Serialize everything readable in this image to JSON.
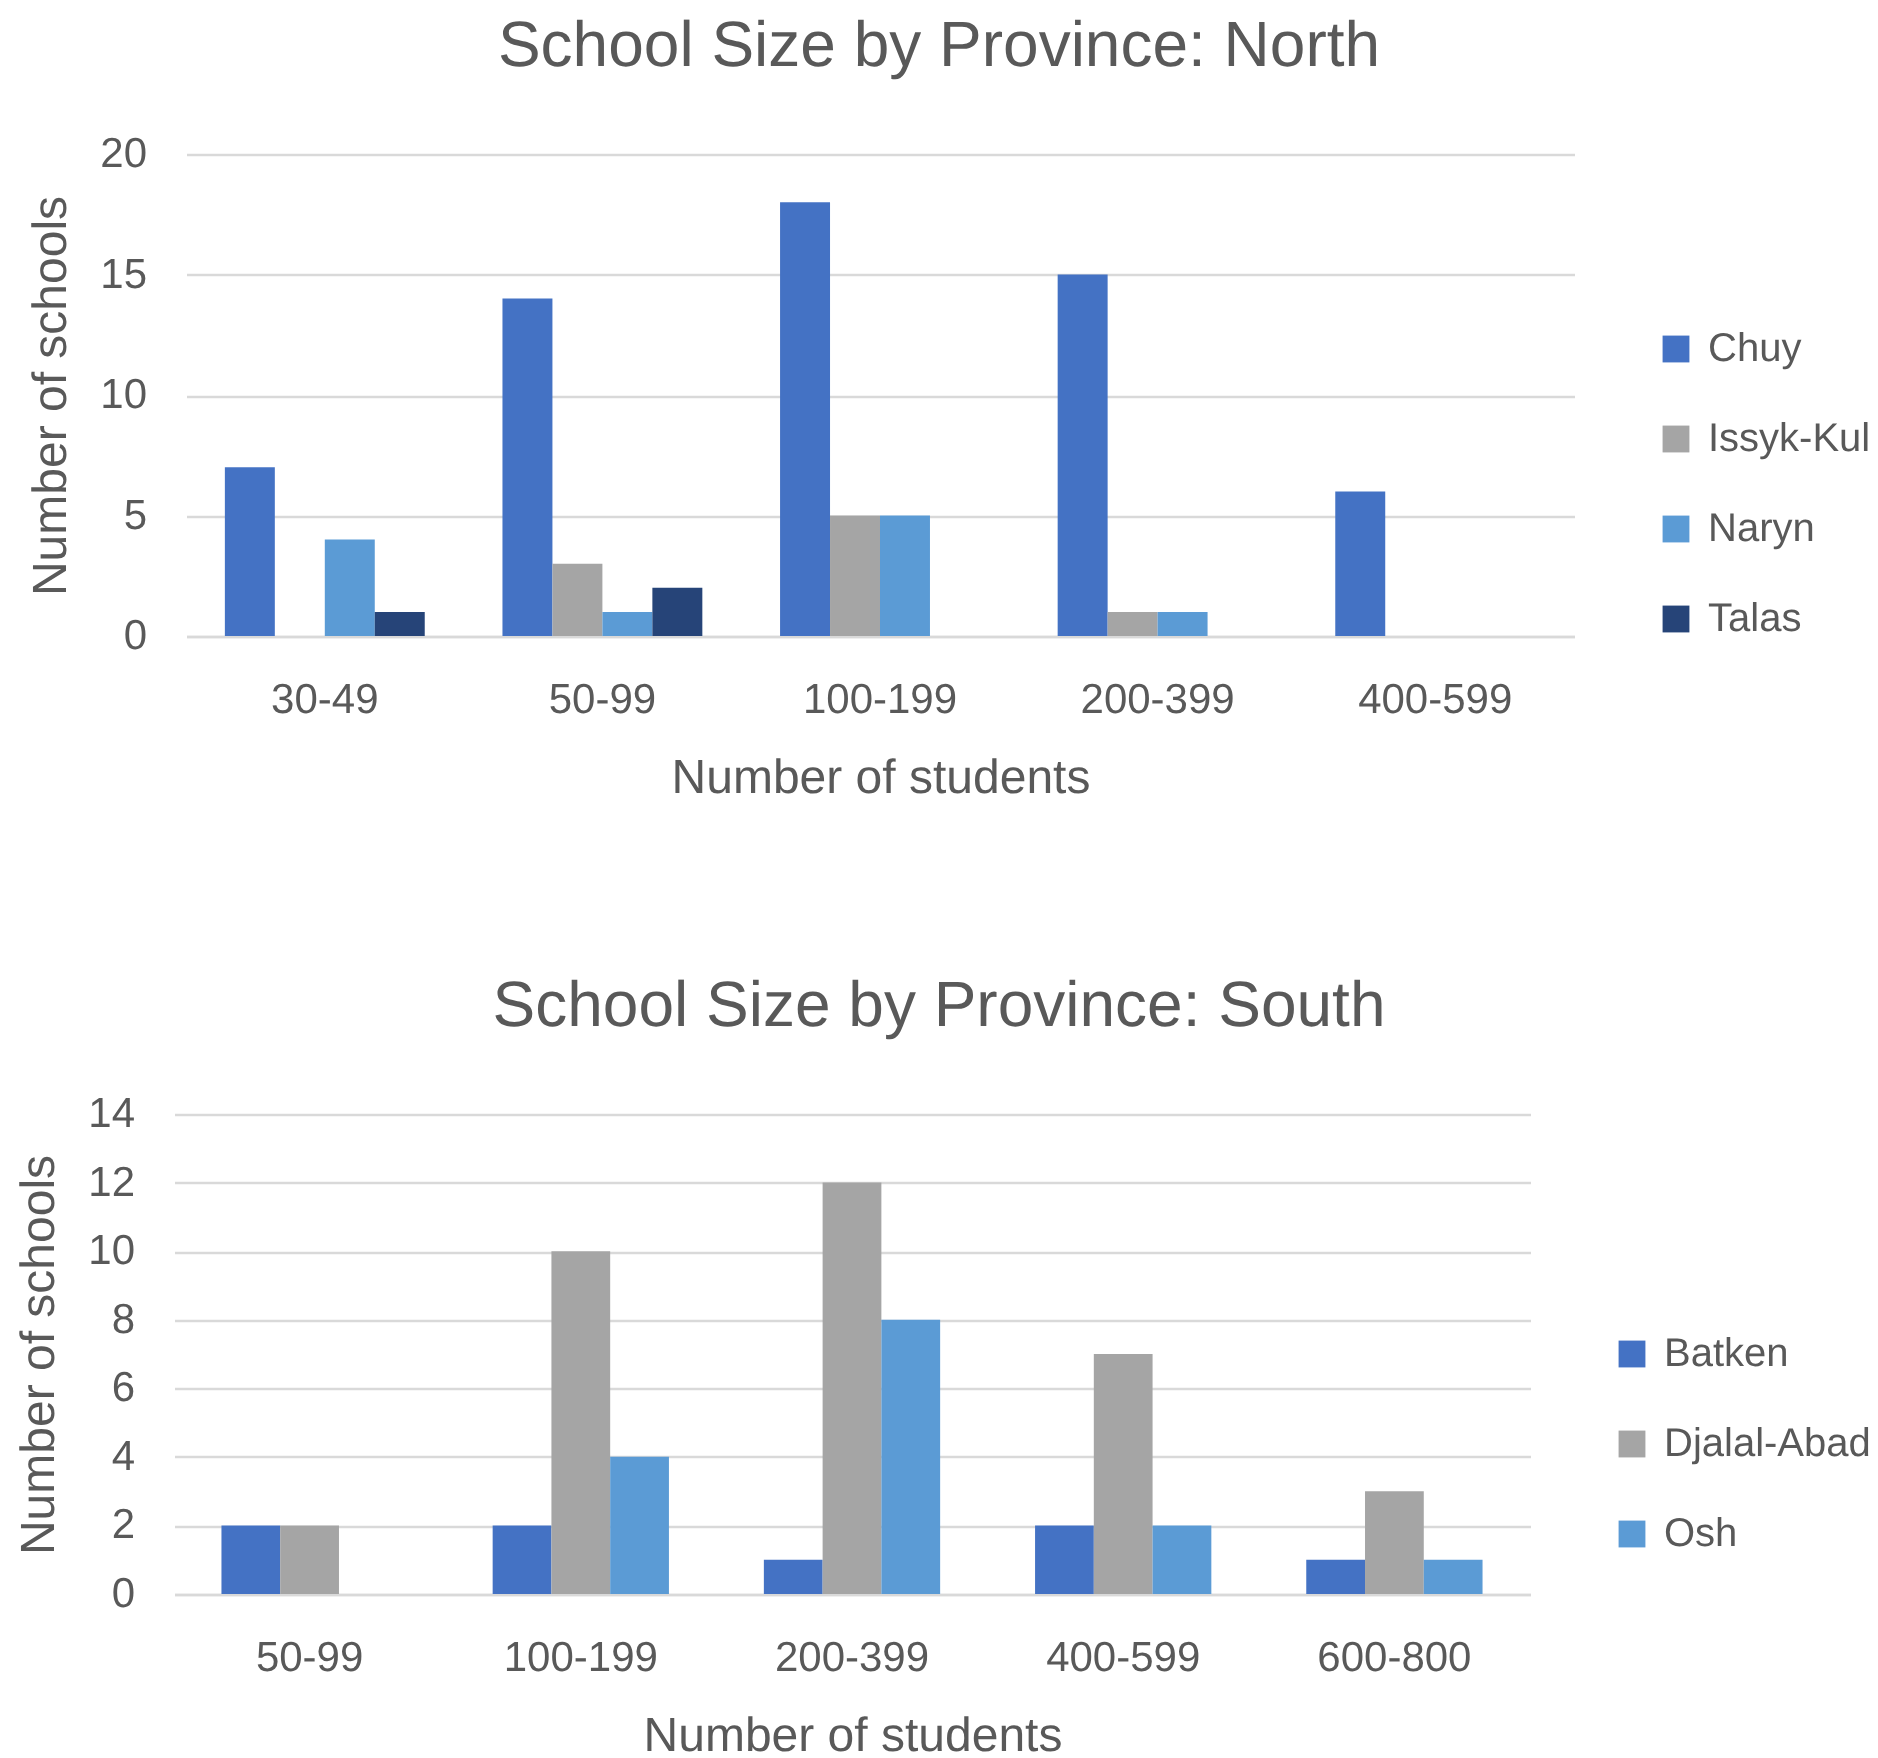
{
  "chart_data": [
    {
      "type": "bar",
      "title": "School Size by Province: North",
      "xlabel": "Number of students",
      "ylabel": "Number of schools",
      "categories": [
        "30-49",
        "50-99",
        "100-199",
        "200-399",
        "400-599"
      ],
      "series": [
        {
          "name": "Chuy",
          "color": "#4472c4",
          "values": [
            7,
            14,
            18,
            15,
            6
          ]
        },
        {
          "name": "Issyk-Kul",
          "color": "#a5a5a5",
          "values": [
            null,
            3,
            5,
            1,
            null
          ]
        },
        {
          "name": "Naryn",
          "color": "#5b9bd5",
          "values": [
            4,
            1,
            5,
            1,
            null
          ]
        },
        {
          "name": "Talas",
          "color": "#264478",
          "values": [
            1,
            2,
            null,
            null,
            null
          ]
        }
      ],
      "ylim": [
        0,
        20
      ],
      "yticks": [
        0,
        5,
        10,
        15,
        20
      ],
      "grid": "y",
      "legend": "right"
    },
    {
      "type": "bar",
      "title": "School Size by Province: South",
      "xlabel": "Number of students",
      "ylabel": "Number of schools",
      "categories": [
        "50-99",
        "100-199",
        "200-399",
        "400-599",
        "600-800"
      ],
      "series": [
        {
          "name": "Batken",
          "color": "#4472c4",
          "values": [
            2,
            2,
            1,
            2,
            1
          ]
        },
        {
          "name": "Djalal-Abad",
          "color": "#a5a5a5",
          "values": [
            2,
            10,
            12,
            7,
            3
          ]
        },
        {
          "name": "Osh",
          "color": "#5b9bd5",
          "values": [
            null,
            4,
            8,
            2,
            1
          ]
        }
      ],
      "ylim": [
        0,
        14
      ],
      "yticks": [
        0,
        2,
        4,
        6,
        8,
        10,
        12,
        14
      ],
      "grid": "y",
      "legend": "right"
    }
  ]
}
